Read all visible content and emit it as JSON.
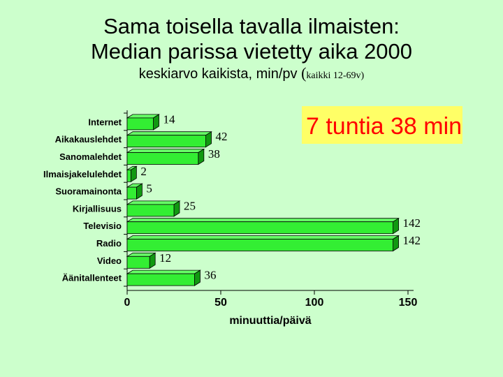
{
  "title_line1": "Sama toisella tavalla ilmaisten:",
  "title_line2": "Median parissa vietetty aika 2000",
  "subtitle_main": "keskiarvo kaikista, min/pv ",
  "subtitle_paren_open": "(",
  "subtitle_range": "kaikki 12-69v)",
  "annotation": "7 tuntia 38 min",
  "colors": {
    "bar": "#33ee33",
    "bar_dark": "#119911",
    "bar_top": "#66ff66",
    "note_bg": "#ffff66",
    "note_text": "#ff0000"
  },
  "chart_data": {
    "type": "bar",
    "orientation": "horizontal",
    "categories": [
      "Internet",
      "Aikakauslehdet",
      "Sanomalehdet",
      "Ilmaisjakelulehdet",
      "Suoramainonta",
      "Kirjallisuus",
      "Televisio",
      "Radio",
      "Video",
      "Äänitallenteet"
    ],
    "values": [
      14,
      42,
      38,
      2,
      5,
      25,
      142,
      142,
      12,
      36
    ],
    "xlabel": "minuuttia/päivä",
    "xlim": [
      0,
      150
    ],
    "xticks": [
      0,
      50,
      100,
      150
    ],
    "grid": false
  }
}
